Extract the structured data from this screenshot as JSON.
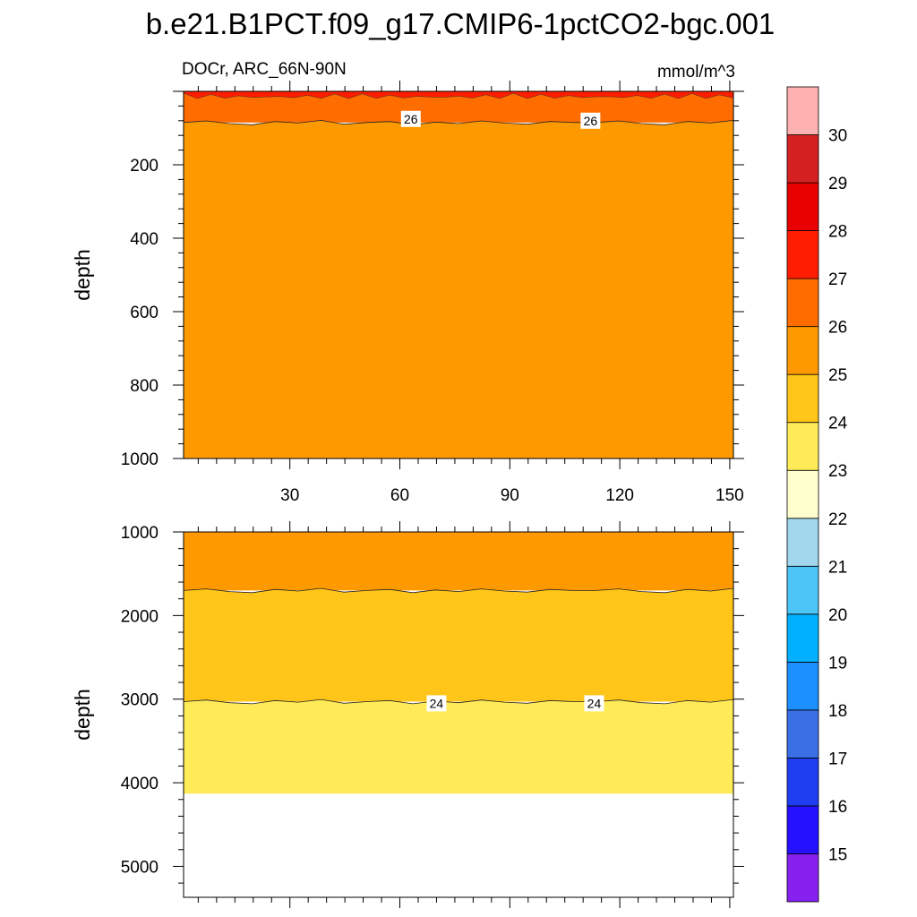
{
  "chart_data": {
    "type": "contour",
    "title": "b.e21.B1PCT.f09_g17.CMIP6-1pctCO2-bgc.001",
    "variable_region": "DOCr, ARC_66N-90N",
    "units": "mmol/m^3",
    "xlabel": "",
    "ylabel": "depth",
    "x_range": [
      1,
      151
    ],
    "panels": [
      {
        "name": "upper",
        "y_range": [
          0,
          1000
        ],
        "yticks": [
          200,
          400,
          600,
          800,
          1000
        ],
        "xticks": [
          30,
          60,
          90,
          120,
          150
        ],
        "show_xtick_labels": true,
        "bands": [
          {
            "level_range": [
              26,
              27
            ],
            "color": "#ff6d00",
            "depth_range": [
              0,
              85
            ]
          },
          {
            "level_range": [
              25,
              26
            ],
            "color": "#ff9900",
            "depth_range": [
              85,
              1000
            ]
          }
        ],
        "contours": [
          {
            "level": 26,
            "depth": 85
          }
        ],
        "contour_labels": [
          {
            "text": "26",
            "x": 63,
            "depth": 75
          },
          {
            "text": "26",
            "x": 112,
            "depth": 80
          }
        ]
      },
      {
        "name": "lower",
        "y_range": [
          1000,
          5370
        ],
        "yticks": [
          1000,
          2000,
          3000,
          4000,
          5000
        ],
        "xticks": [
          30,
          60,
          90,
          120,
          150
        ],
        "show_xtick_labels": false,
        "bands": [
          {
            "level_range": [
              25,
              26
            ],
            "color": "#ff9900",
            "depth_range": [
              1000,
              1700
            ]
          },
          {
            "level_range": [
              24,
              25
            ],
            "color": "#ffc519",
            "depth_range": [
              1700,
              3030
            ]
          },
          {
            "level_range": [
              23,
              24
            ],
            "color": "#ffea58",
            "depth_range": [
              3030,
              4130
            ]
          }
        ],
        "contours": [
          {
            "level": 25,
            "depth": 1700
          },
          {
            "level": 24,
            "depth": 3030
          }
        ],
        "contour_labels": [
          {
            "text": "24",
            "x": 70,
            "depth": 3050
          },
          {
            "text": "24",
            "x": 113,
            "depth": 3050
          }
        ]
      }
    ],
    "colorbar": {
      "labels": [
        "15",
        "16",
        "17",
        "18",
        "19",
        "20",
        "21",
        "22",
        "23",
        "24",
        "25",
        "26",
        "27",
        "28",
        "29",
        "30"
      ],
      "colors": [
        "#8620ee",
        "#2511ff",
        "#1f3ef2",
        "#3b6fe6",
        "#1d90ff",
        "#00b1ff",
        "#4dc6f7",
        "#a1d6ed",
        "#ffffce",
        "#ffea58",
        "#ffc519",
        "#ff9900",
        "#ff6d00",
        "#ff1d00",
        "#e60000",
        "#d42020",
        "#ffb1b1"
      ]
    }
  }
}
